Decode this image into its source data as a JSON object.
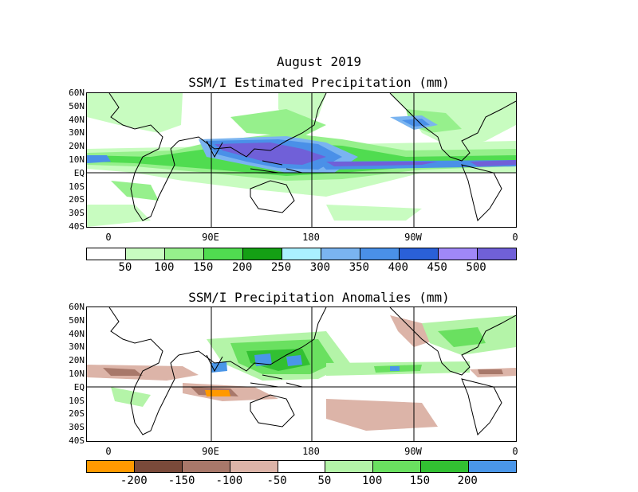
{
  "header": {
    "month_title": "August 2019",
    "map1_title": "SSM/I Estimated Precipitation (mm)",
    "map2_title": "SSM/I Precipitation Anomalies (mm)"
  },
  "axes": {
    "lat_labels": [
      "60N",
      "50N",
      "40N",
      "30N",
      "20N",
      "10N",
      "EQ",
      "10S",
      "20S",
      "30S",
      "40S"
    ],
    "lon_labels": [
      "0",
      "90E",
      "180",
      "90W",
      "0"
    ]
  },
  "colorbar1": {
    "colors": [
      "#ffffff",
      "#c8fcc0",
      "#96f08c",
      "#50dc50",
      "#14a014",
      "#aaf0ff",
      "#7ab4f0",
      "#4a90e8",
      "#2a60d8",
      "#a088f8",
      "#7060d8"
    ],
    "labels": [
      "50",
      "100",
      "150",
      "200",
      "250",
      "300",
      "350",
      "400",
      "450",
      "500"
    ]
  },
  "colorbar2": {
    "colors": [
      "#ff9900",
      "#7a4a3a",
      "#a8786a",
      "#dcb4a8",
      "#ffffff",
      "#b4f4a8",
      "#6ae060",
      "#32c032",
      "#4a96e8"
    ],
    "labels": [
      "-200",
      "-150",
      "-100",
      "-50",
      "50",
      "100",
      "150",
      "200"
    ]
  },
  "map_features": {
    "projection": "cylindrical equidistant, 20W to 340E",
    "grid_lines": [
      "equator",
      "90E",
      "180",
      "90W"
    ],
    "coastlines": "black outline"
  }
}
